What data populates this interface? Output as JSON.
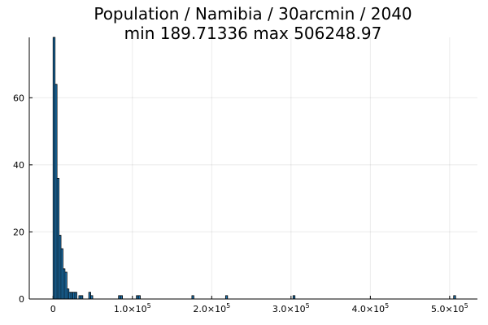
{
  "chart_data": {
    "type": "bar",
    "title_line1": "Population / Namibia / 30arcmin / 2040",
    "title_line2": "min 189.71336  max 506248.97",
    "xlabel": "",
    "ylabel": "",
    "xlim": [
      -30000,
      535000
    ],
    "ylim": [
      0,
      78
    ],
    "bin_width": 2500,
    "bar_color": "#1f77b4",
    "grid": true,
    "legend": "none",
    "x_ticks": [
      {
        "value": 0,
        "label": "0",
        "exp": ""
      },
      {
        "value": 100000,
        "label": "1.0×10",
        "exp": "5"
      },
      {
        "value": 200000,
        "label": "2.0×10",
        "exp": "5"
      },
      {
        "value": 300000,
        "label": "3.0×10",
        "exp": "5"
      },
      {
        "value": 400000,
        "label": "4.0×10",
        "exp": "5"
      },
      {
        "value": 500000,
        "label": "5.0×10",
        "exp": "5"
      }
    ],
    "y_ticks": [
      {
        "value": 0,
        "label": "0"
      },
      {
        "value": 20,
        "label": "20"
      },
      {
        "value": 40,
        "label": "40"
      },
      {
        "value": 60,
        "label": "60"
      }
    ],
    "bins": [
      {
        "x": 0,
        "count": 78
      },
      {
        "x": 2500,
        "count": 64
      },
      {
        "x": 5000,
        "count": 36
      },
      {
        "x": 7500,
        "count": 19
      },
      {
        "x": 10000,
        "count": 15
      },
      {
        "x": 12500,
        "count": 9
      },
      {
        "x": 15000,
        "count": 8
      },
      {
        "x": 17500,
        "count": 3
      },
      {
        "x": 20000,
        "count": 2
      },
      {
        "x": 22500,
        "count": 2
      },
      {
        "x": 25000,
        "count": 2
      },
      {
        "x": 27500,
        "count": 2
      },
      {
        "x": 32500,
        "count": 1
      },
      {
        "x": 35000,
        "count": 1
      },
      {
        "x": 45000,
        "count": 2
      },
      {
        "x": 47500,
        "count": 1
      },
      {
        "x": 82500,
        "count": 1
      },
      {
        "x": 85000,
        "count": 1
      },
      {
        "x": 105000,
        "count": 1
      },
      {
        "x": 107500,
        "count": 1
      },
      {
        "x": 175000,
        "count": 1
      },
      {
        "x": 217500,
        "count": 1
      },
      {
        "x": 302500,
        "count": 1
      },
      {
        "x": 505000,
        "count": 1
      }
    ]
  }
}
